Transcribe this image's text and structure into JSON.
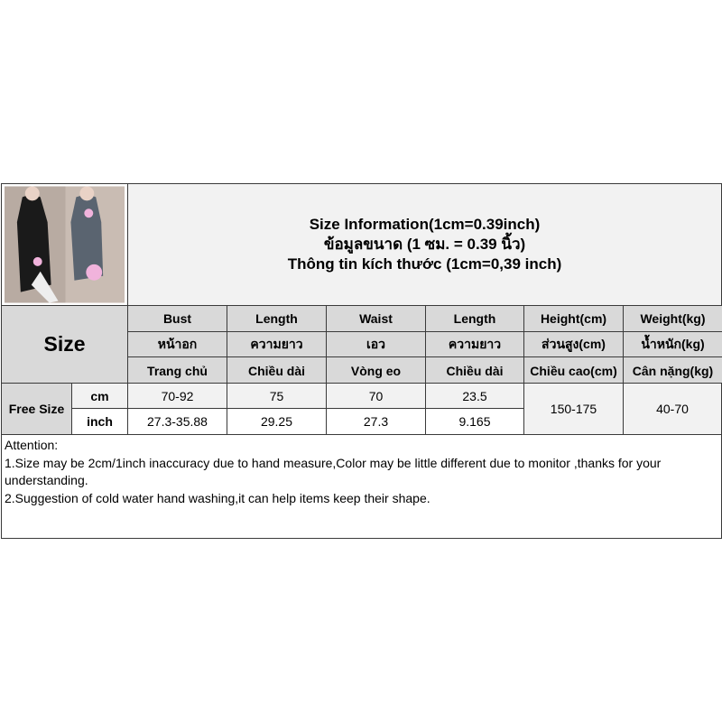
{
  "title": {
    "line1": "Size Information(1cm=0.39inch)",
    "line2": "ข้อมูลขนาด (1 ซม. = 0.39 นิ้ว)",
    "line3": "Thông tin kích thước (1cm=0,39 inch)"
  },
  "size_label": "Size",
  "columns": [
    {
      "en": "Bust",
      "th": "หน้าอก",
      "vi": "Trang chủ"
    },
    {
      "en": "Length",
      "th": "ความยาว",
      "vi": "Chiều dài"
    },
    {
      "en": "Waist",
      "th": "เอว",
      "vi": "Vòng eo"
    },
    {
      "en": "Length",
      "th": "ความยาว",
      "vi": "Chiều dài"
    },
    {
      "en": "Height(cm)",
      "th": "ส่วนสูง(cm)",
      "vi": "Chiều cao(cm)"
    },
    {
      "en": "Weight(kg)",
      "th": "น้ำหนัก(kg)",
      "vi": "Cân nặng(kg)"
    }
  ],
  "row_label": "Free Size",
  "units": [
    "cm",
    "inch"
  ],
  "cm_values": [
    "70-92",
    "75",
    "70",
    "23.5"
  ],
  "inch_values": [
    "27.3-35.88",
    "29.25",
    "27.3",
    "9.165"
  ],
  "height": "150-175",
  "weight": "40-70",
  "notes": [
    "Attention:",
    "1.Size may be 2cm/1inch inaccuracy due to hand measure,Color may be little different due to monitor ,thanks for your understanding.",
    "2.Suggestion of cold water hand washing,it can help items keep their shape."
  ]
}
